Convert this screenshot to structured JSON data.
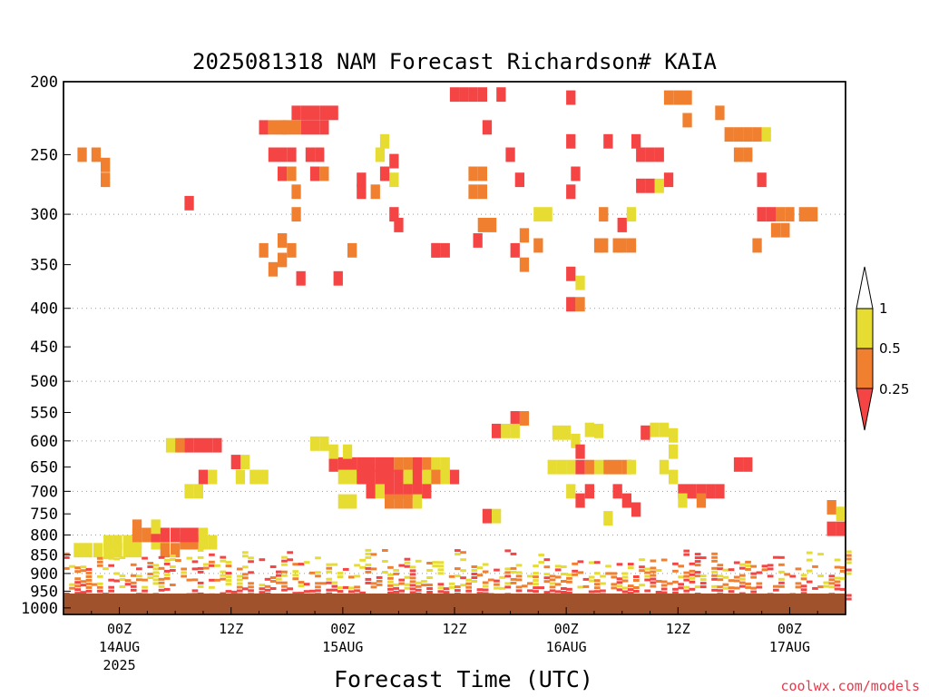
{
  "chart_data": {
    "type": "heatmap",
    "title": "2025081318 NAM Forecast Richardson# KAIA",
    "xlabel": "Forecast Time (UTC)",
    "ylabel": "",
    "y_ticks": [
      "200",
      "250",
      "300",
      "350",
      "400",
      "450",
      "500",
      "550",
      "600",
      "650",
      "700",
      "750",
      "800",
      "850",
      "900",
      "950",
      "1000"
    ],
    "y_gridlines": [
      300,
      400,
      500,
      600,
      700,
      800,
      900,
      1000
    ],
    "x_ticks": [
      {
        "label": "00Z",
        "date": "14AUG",
        "year": "2025",
        "hour": 6
      },
      {
        "label": "12Z",
        "date": "",
        "year": "",
        "hour": 18
      },
      {
        "label": "00Z",
        "date": "15AUG",
        "year": "",
        "hour": 30
      },
      {
        "label": "12Z",
        "date": "",
        "year": "",
        "hour": 42
      },
      {
        "label": "00Z",
        "date": "16AUG",
        "year": "",
        "hour": 54
      },
      {
        "label": "12Z",
        "date": "",
        "year": "",
        "hour": 66
      },
      {
        "label": "00Z",
        "date": "17AUG",
        "year": "",
        "hour": 78
      }
    ],
    "x_range_hours": [
      0,
      84
    ],
    "y_range_hpa": [
      200,
      1020
    ],
    "colorbar": {
      "levels": [
        "0.25",
        "0.5",
        "1"
      ],
      "colors": {
        "below_0.25": "#f54444",
        "0.25_to_0.5": "#f08030",
        "0.5_to_1": "#e6dc32",
        "above_1": "#ffffff"
      }
    },
    "ground_color": "#a0522d",
    "cells": [
      [
        4.8,
        818,
        2
      ],
      [
        5.8,
        818,
        2
      ],
      [
        6.9,
        818,
        2
      ],
      [
        7.9,
        818,
        2
      ],
      [
        9.9,
        818,
        2
      ],
      [
        10.9,
        818,
        2
      ],
      [
        13.0,
        818,
        1
      ],
      [
        14.0,
        818,
        1
      ],
      [
        15.0,
        818,
        2
      ],
      [
        16.0,
        818,
        2
      ],
      [
        1.6,
        838,
        2
      ],
      [
        2.6,
        838,
        2
      ],
      [
        3.7,
        838,
        2
      ],
      [
        4.8,
        838,
        2
      ],
      [
        5.8,
        838,
        2
      ],
      [
        6.9,
        838,
        2
      ],
      [
        7.9,
        838,
        2
      ],
      [
        10.9,
        838,
        1
      ],
      [
        12.0,
        838,
        1
      ],
      [
        7.9,
        800,
        1
      ],
      [
        8.9,
        800,
        1
      ],
      [
        9.9,
        800,
        0
      ],
      [
        10.9,
        800,
        0
      ],
      [
        12.0,
        800,
        0
      ],
      [
        13.0,
        800,
        0
      ],
      [
        14.0,
        800,
        0
      ],
      [
        15.0,
        800,
        2
      ],
      [
        7.9,
        780,
        1
      ],
      [
        9.9,
        780,
        2
      ],
      [
        11.5,
        608,
        2
      ],
      [
        12.5,
        608,
        1
      ],
      [
        13.5,
        608,
        0
      ],
      [
        14.5,
        608,
        0
      ],
      [
        15.5,
        608,
        0
      ],
      [
        16.5,
        608,
        0
      ],
      [
        18.5,
        640,
        0
      ],
      [
        19.5,
        640,
        2
      ],
      [
        15.0,
        670,
        0
      ],
      [
        16.0,
        670,
        2
      ],
      [
        19.0,
        670,
        2
      ],
      [
        20.5,
        670,
        2
      ],
      [
        21.5,
        670,
        2
      ],
      [
        13.5,
        700,
        2
      ],
      [
        14.5,
        700,
        2
      ],
      [
        29.0,
        645,
        0
      ],
      [
        30.0,
        645,
        0
      ],
      [
        31.0,
        645,
        0
      ],
      [
        32.0,
        645,
        0
      ],
      [
        33.0,
        645,
        0
      ],
      [
        34.0,
        645,
        0
      ],
      [
        35.0,
        645,
        0
      ],
      [
        36.0,
        645,
        1
      ],
      [
        37.0,
        645,
        1
      ],
      [
        38.0,
        645,
        0
      ],
      [
        39.0,
        645,
        1
      ],
      [
        40.0,
        645,
        2
      ],
      [
        41.0,
        645,
        2
      ],
      [
        30.0,
        670,
        2
      ],
      [
        31.0,
        670,
        2
      ],
      [
        32.0,
        670,
        0
      ],
      [
        33.0,
        670,
        0
      ],
      [
        34.0,
        670,
        0
      ],
      [
        35.0,
        670,
        0
      ],
      [
        36.0,
        670,
        0
      ],
      [
        37.0,
        670,
        2
      ],
      [
        38.0,
        670,
        0
      ],
      [
        39.0,
        670,
        2
      ],
      [
        40.0,
        670,
        1
      ],
      [
        41.0,
        670,
        2
      ],
      [
        42.0,
        670,
        0
      ],
      [
        33.0,
        700,
        0
      ],
      [
        34.0,
        700,
        2
      ],
      [
        35.0,
        700,
        0
      ],
      [
        36.0,
        700,
        0
      ],
      [
        37.0,
        700,
        0
      ],
      [
        38.0,
        700,
        0
      ],
      [
        39.0,
        700,
        0
      ],
      [
        35.0,
        722,
        1
      ],
      [
        36.0,
        722,
        1
      ],
      [
        37.0,
        722,
        1
      ],
      [
        38.0,
        722,
        2
      ],
      [
        30.0,
        722,
        2
      ],
      [
        31.0,
        722,
        2
      ],
      [
        27.0,
        605,
        2
      ],
      [
        28.0,
        605,
        2
      ],
      [
        29.0,
        620,
        2
      ],
      [
        30.5,
        620,
        2
      ],
      [
        46.5,
        582,
        0
      ],
      [
        47.5,
        582,
        2
      ],
      [
        48.5,
        560,
        0
      ],
      [
        49.5,
        560,
        1
      ],
      [
        48.5,
        582,
        2
      ],
      [
        53.0,
        585,
        2
      ],
      [
        54.0,
        585,
        2
      ],
      [
        55.0,
        600,
        2
      ],
      [
        55.5,
        620,
        0
      ],
      [
        56.5,
        580,
        2
      ],
      [
        57.5,
        582,
        2
      ],
      [
        52.5,
        650,
        2
      ],
      [
        53.5,
        650,
        2
      ],
      [
        54.5,
        650,
        2
      ],
      [
        55.5,
        650,
        0
      ],
      [
        56.5,
        650,
        1
      ],
      [
        57.5,
        650,
        2
      ],
      [
        58.5,
        650,
        1
      ],
      [
        59.5,
        650,
        1
      ],
      [
        60.5,
        650,
        1
      ],
      [
        61.0,
        650,
        2
      ],
      [
        54.5,
        700,
        2
      ],
      [
        55.5,
        720,
        0
      ],
      [
        56.5,
        700,
        0
      ],
      [
        59.5,
        700,
        0
      ],
      [
        60.5,
        720,
        0
      ],
      [
        61.5,
        740,
        0
      ],
      [
        58.5,
        760,
        2
      ],
      [
        62.5,
        585,
        0
      ],
      [
        63.5,
        580,
        2
      ],
      [
        64.5,
        580,
        2
      ],
      [
        65.5,
        590,
        2
      ],
      [
        65.5,
        620,
        2
      ],
      [
        64.5,
        650,
        2
      ],
      [
        65.5,
        670,
        2
      ],
      [
        66.5,
        700,
        0
      ],
      [
        67.5,
        700,
        0
      ],
      [
        68.5,
        700,
        0
      ],
      [
        69.5,
        700,
        0
      ],
      [
        70.5,
        700,
        0
      ],
      [
        66.5,
        720,
        2
      ],
      [
        68.5,
        720,
        1
      ],
      [
        72.5,
        645,
        0
      ],
      [
        73.5,
        645,
        0
      ],
      [
        82.5,
        735,
        1
      ],
      [
        83.5,
        750,
        2
      ],
      [
        83.5,
        785,
        0
      ],
      [
        82.5,
        785,
        0
      ],
      [
        45.5,
        755,
        0
      ],
      [
        46.5,
        755,
        2
      ],
      [
        25.0,
        220,
        0
      ],
      [
        26.0,
        220,
        0
      ],
      [
        27.0,
        220,
        0
      ],
      [
        28.0,
        220,
        0
      ],
      [
        29.0,
        220,
        0
      ],
      [
        24.0,
        230,
        1
      ],
      [
        25.0,
        230,
        1
      ],
      [
        26.0,
        230,
        0
      ],
      [
        27.0,
        230,
        0
      ],
      [
        28.0,
        230,
        0
      ],
      [
        21.5,
        230,
        0
      ],
      [
        22.5,
        230,
        1
      ],
      [
        23.5,
        230,
        1
      ],
      [
        22.5,
        250,
        0
      ],
      [
        23.5,
        250,
        0
      ],
      [
        24.5,
        250,
        0
      ],
      [
        23.5,
        265,
        0
      ],
      [
        24.5,
        265,
        1
      ],
      [
        26.5,
        250,
        0
      ],
      [
        27.5,
        250,
        0
      ],
      [
        28.0,
        265,
        1
      ],
      [
        27.0,
        265,
        0
      ],
      [
        4.5,
        258,
        1
      ],
      [
        4.5,
        270,
        1
      ],
      [
        42.0,
        208,
        0
      ],
      [
        43.0,
        208,
        0
      ],
      [
        44.0,
        208,
        0
      ],
      [
        45.0,
        208,
        0
      ],
      [
        47.0,
        208,
        0
      ],
      [
        45.5,
        230,
        0
      ],
      [
        48.0,
        250,
        0
      ],
      [
        49.0,
        270,
        0
      ],
      [
        44.0,
        265,
        1
      ],
      [
        45.0,
        265,
        1
      ],
      [
        44.0,
        280,
        1
      ],
      [
        45.0,
        280,
        1
      ],
      [
        32.0,
        280,
        0
      ],
      [
        33.5,
        280,
        1
      ],
      [
        35.5,
        270,
        2
      ],
      [
        35.5,
        255,
        0
      ],
      [
        34.0,
        250,
        2
      ],
      [
        36.0,
        310,
        0
      ],
      [
        40.0,
        335,
        0
      ],
      [
        45.0,
        310,
        1
      ],
      [
        46.0,
        310,
        1
      ],
      [
        44.5,
        325,
        0
      ],
      [
        51.0,
        300,
        2
      ],
      [
        51.0,
        330,
        1
      ],
      [
        52.0,
        300,
        2
      ],
      [
        48.5,
        335,
        0
      ],
      [
        49.5,
        320,
        1
      ],
      [
        49.5,
        350,
        1
      ],
      [
        54.5,
        210,
        0
      ],
      [
        54.5,
        240,
        0
      ],
      [
        55.0,
        265,
        0
      ],
      [
        54.5,
        280,
        0
      ],
      [
        54.5,
        360,
        0
      ],
      [
        54.5,
        395,
        0
      ],
      [
        55.5,
        395,
        1
      ],
      [
        55.5,
        370,
        2
      ],
      [
        57.5,
        330,
        1
      ],
      [
        58.0,
        330,
        1
      ],
      [
        59.5,
        330,
        1
      ],
      [
        60.0,
        330,
        1
      ],
      [
        61.0,
        330,
        1
      ],
      [
        58.0,
        300,
        1
      ],
      [
        60.0,
        310,
        0
      ],
      [
        58.5,
        240,
        0
      ],
      [
        61.5,
        240,
        0
      ],
      [
        61.0,
        300,
        2
      ],
      [
        65.0,
        210,
        1
      ],
      [
        66.0,
        210,
        1
      ],
      [
        67.0,
        210,
        1
      ],
      [
        67.0,
        225,
        1
      ],
      [
        70.5,
        220,
        1
      ],
      [
        62.0,
        250,
        0
      ],
      [
        63.0,
        250,
        0
      ],
      [
        64.0,
        250,
        0
      ],
      [
        62.0,
        275,
        0
      ],
      [
        63.0,
        275,
        0
      ],
      [
        64.0,
        275,
        2
      ],
      [
        65.0,
        270,
        0
      ],
      [
        71.5,
        235,
        1
      ],
      [
        72.5,
        235,
        1
      ],
      [
        73.5,
        235,
        1
      ],
      [
        74.5,
        235,
        1
      ],
      [
        75.5,
        235,
        2
      ],
      [
        72.5,
        250,
        1
      ],
      [
        73.5,
        250,
        1
      ],
      [
        75.0,
        300,
        0
      ],
      [
        76.0,
        300,
        0
      ],
      [
        77.0,
        300,
        1
      ],
      [
        78.0,
        300,
        1
      ],
      [
        79.5,
        300,
        1
      ],
      [
        80.5,
        300,
        1
      ],
      [
        76.5,
        315,
        1
      ],
      [
        77.5,
        315,
        1
      ],
      [
        74.5,
        330,
        1
      ],
      [
        75.0,
        270,
        0
      ],
      [
        32.0,
        270,
        0
      ],
      [
        34.5,
        265,
        0
      ],
      [
        34.5,
        240,
        2
      ],
      [
        35.5,
        300,
        0
      ],
      [
        23.5,
        325,
        1
      ],
      [
        24.5,
        335,
        1
      ],
      [
        23.5,
        345,
        1
      ],
      [
        25.5,
        365,
        0
      ],
      [
        29.5,
        365,
        0
      ],
      [
        21.5,
        335,
        1
      ],
      [
        22.5,
        355,
        1
      ],
      [
        31.0,
        335,
        1
      ],
      [
        40.0,
        335,
        0
      ],
      [
        41.0,
        335,
        0
      ],
      [
        13.5,
        290,
        0
      ],
      [
        2.0,
        250,
        1
      ],
      [
        3.5,
        250,
        1
      ],
      [
        25.0,
        280,
        1
      ],
      [
        25.0,
        300,
        1
      ]
    ],
    "low_level_band": {
      "pressure_top_hpa": 835,
      "pressure_bottom_hpa": 975
    }
  },
  "credit": "coolwx.com/models"
}
